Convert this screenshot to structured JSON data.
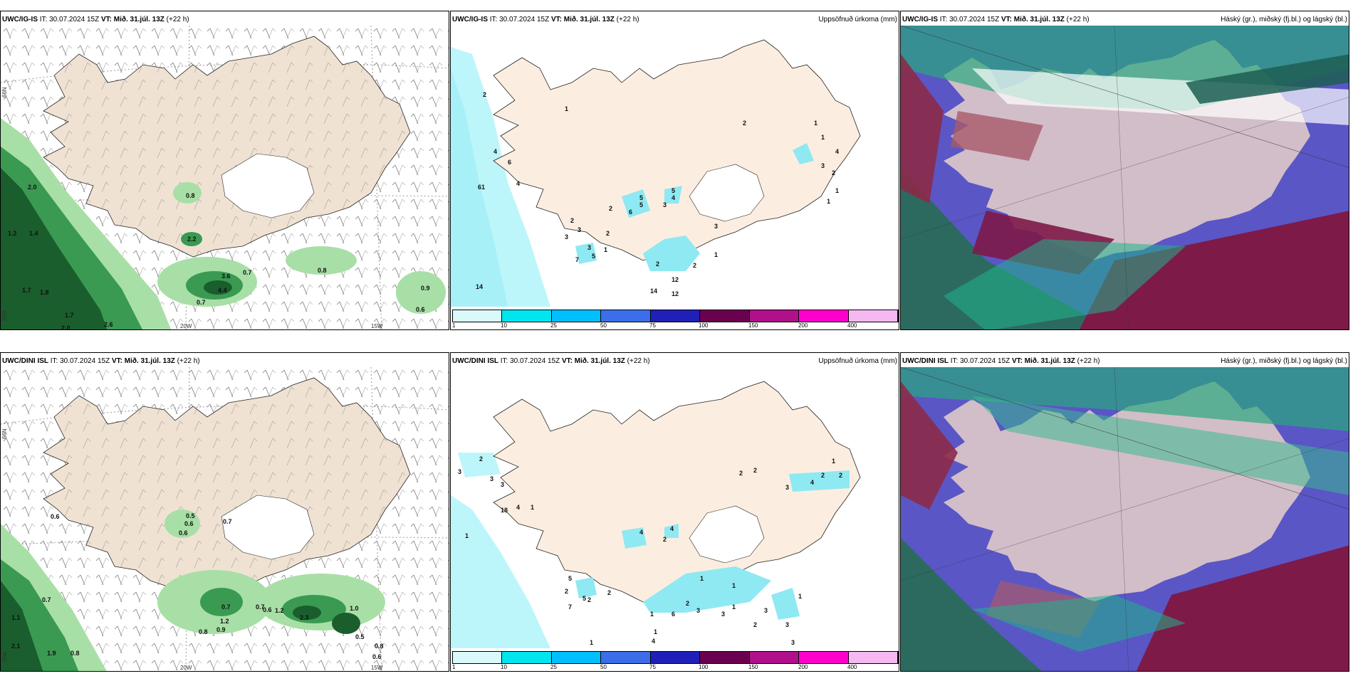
{
  "titles": {
    "p1": {
      "model": "UWC/IG-IS",
      "it": "IT: 30.07.2024 15Z",
      "vt": "VT: Mið. 31.júl. 13Z",
      "lead": "(+22 h)",
      "right": ""
    },
    "p2": {
      "model": "UWC/IG-IS",
      "it": "IT: 30.07.2024 15Z",
      "vt": "VT: Mið. 31.júl. 13Z",
      "lead": "(+22 h)",
      "right": "Uppsöfnuð úrkoma (mm)"
    },
    "p3": {
      "model": "UWC/IG-IS",
      "it": "IT: 30.07.2024 15Z",
      "vt": "VT: Mið. 31.júl. 13Z",
      "lead": "(+22 h)",
      "right": "Háský (gr.), miðský (fj.bl.) og lágský (bl.)"
    },
    "p4": {
      "model": "UWC/DINI ISL",
      "it": "IT: 30.07.2024 15Z",
      "vt": "VT: Mið. 31.júl. 13Z",
      "lead": "(+22 h)",
      "right": ""
    },
    "p5": {
      "model": "UWC/DINI ISL",
      "it": "IT: 30.07.2024 15Z",
      "vt": "VT: Mið. 31.júl. 13Z",
      "lead": "(+22 h)",
      "right": "Uppsöfnuð úrkoma (mm)"
    },
    "p6": {
      "model": "UWC/DINI ISL",
      "it": "IT: 30.07.2024 15Z",
      "vt": "VT: Mið. 31.júl. 13Z",
      "lead": "(+22 h)",
      "right": "Háský (gr.), miðský (fj.bl.) og lágský (bl.)"
    }
  },
  "axis_labels": {
    "lat66": "66N",
    "lon20": "20W",
    "lon15": "15W",
    "lon25": "25W"
  },
  "colorbar": {
    "ticks": [
      "1",
      "10",
      "25",
      "50",
      "75",
      "100",
      "150",
      "200",
      "400"
    ],
    "colors": [
      "#d9f9fb",
      "#00e5ee",
      "#00bfff",
      "#3b6ee8",
      "#2020b8",
      "#6a0050",
      "#b0108a",
      "#ff00cc",
      "#f5b8f0"
    ]
  },
  "precip_labels_top": [
    "2",
    "1",
    "1",
    "1",
    "4",
    "4",
    "6",
    "3",
    "2",
    "5",
    "4",
    "61",
    "4",
    "5",
    "6",
    "3",
    "5",
    "2",
    "2",
    "3",
    "2",
    "3",
    "3",
    "1",
    "7",
    "5",
    "2",
    "1",
    "2",
    "14",
    "12",
    "12",
    "14",
    "3",
    "2",
    "1",
    "1"
  ],
  "precip_labels_bottom": [
    "2",
    "3",
    "3",
    "3",
    "1",
    "18",
    "4",
    "1",
    "4",
    "4",
    "2",
    "5",
    "4",
    "2",
    "2",
    "7",
    "5",
    "2",
    "1",
    "6",
    "3",
    "1",
    "3",
    "1",
    "2",
    "1",
    "1",
    "1",
    "4",
    "3",
    "2",
    "1",
    "2",
    "2",
    "2",
    "2",
    "3",
    "3",
    "3",
    "1"
  ],
  "wind_labels_top": [
    "2.0",
    "1.2",
    "1.4",
    "1.7",
    "1.8",
    "1.7",
    "2.0",
    "2.6",
    "0.8",
    "2.2",
    "3.6",
    "4.4",
    "0.7",
    "0.7",
    "0.8",
    "0.9",
    "0.6"
  ],
  "wind_labels_bottom": [
    "0.6",
    "0.7",
    "1.1",
    "2.1",
    "1.9",
    "0.8",
    "0.5",
    "0.6",
    "0.6",
    "0.7",
    "0.7",
    "1.2",
    "0.9",
    "0.8",
    "0.7",
    "0.6",
    "1.2",
    "2.3",
    "1.0",
    "0.5",
    "0.8",
    "0.6"
  ]
}
